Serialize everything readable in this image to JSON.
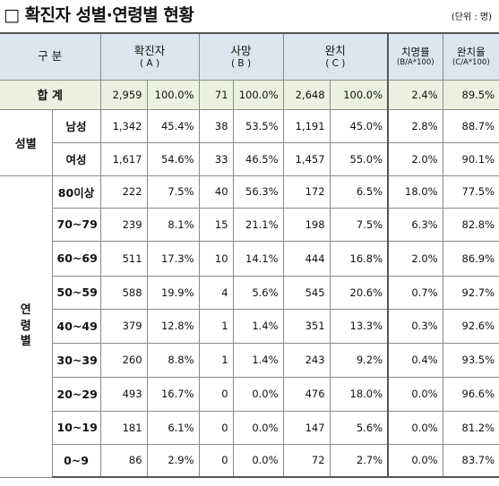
{
  "title": "□ 확진자 성별·연령별 현황",
  "unit": "(단위 : 명)",
  "header": {
    "category": "구 분",
    "confirmed": "확진자",
    "confirmed_sub": "( A )",
    "deaths": "사망",
    "deaths_sub": "( B )",
    "recovered": "완치",
    "recovered_sub": "( C )",
    "fatality_rate": "치명률",
    "fatality_rate_sub": "(B/A*100)",
    "recovery_rate": "완치율",
    "recovery_rate_sub": "(C/A*100)"
  },
  "total": {
    "label": "합 계",
    "cells": [
      "2,959",
      "100.0%",
      "71",
      "100.0%",
      "2,648",
      "100.0%",
      "2.4%",
      "89.5%"
    ]
  },
  "gender": {
    "group_label": "성별",
    "rows": [
      {
        "label": "남성",
        "cells": [
          "1,342",
          "45.4%",
          "38",
          "53.5%",
          "1,191",
          "45.0%",
          "2.8%",
          "88.7%"
        ]
      },
      {
        "label": "여성",
        "cells": [
          "1,617",
          "54.6%",
          "33",
          "46.5%",
          "1,457",
          "55.0%",
          "2.0%",
          "90.1%"
        ]
      }
    ]
  },
  "age": {
    "group_label_chars": [
      "연",
      "령",
      "별"
    ],
    "rows": [
      {
        "label": "80이상",
        "cells": [
          "222",
          "7.5%",
          "40",
          "56.3%",
          "172",
          "6.5%",
          "18.0%",
          "77.5%"
        ]
      },
      {
        "label": "70~79",
        "cells": [
          "239",
          "8.1%",
          "15",
          "21.1%",
          "198",
          "7.5%",
          "6.3%",
          "82.8%"
        ]
      },
      {
        "label": "60~69",
        "cells": [
          "511",
          "17.3%",
          "10",
          "14.1%",
          "444",
          "16.8%",
          "2.0%",
          "86.9%"
        ]
      },
      {
        "label": "50~59",
        "cells": [
          "588",
          "19.9%",
          "4",
          "5.6%",
          "545",
          "20.6%",
          "0.7%",
          "92.7%"
        ]
      },
      {
        "label": "40~49",
        "cells": [
          "379",
          "12.8%",
          "1",
          "1.4%",
          "351",
          "13.3%",
          "0.3%",
          "92.6%"
        ]
      },
      {
        "label": "30~39",
        "cells": [
          "260",
          "8.8%",
          "1",
          "1.4%",
          "243",
          "9.2%",
          "0.4%",
          "93.5%"
        ]
      },
      {
        "label": "20~29",
        "cells": [
          "493",
          "16.7%",
          "0",
          "0.0%",
          "476",
          "18.0%",
          "0.0%",
          "96.6%"
        ]
      },
      {
        "label": "10~19",
        "cells": [
          "181",
          "6.1%",
          "0",
          "0.0%",
          "147",
          "5.6%",
          "0.0%",
          "81.2%"
        ]
      },
      {
        "label": "0~9",
        "cells": [
          "86",
          "2.9%",
          "0",
          "0.0%",
          "72",
          "2.7%",
          "0.0%",
          "83.7%"
        ]
      }
    ]
  }
}
